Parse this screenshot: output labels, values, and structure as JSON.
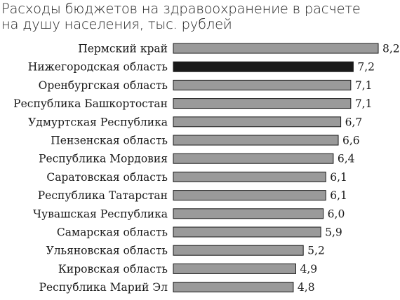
{
  "chart_data": {
    "type": "bar",
    "orientation": "horizontal",
    "title": "Расходы бюджетов на здравоохранение в расчете на душу населения, тыс. рублей",
    "title_lines": [
      "Расходы бюджетов на здравоохранение в расчете",
      "на душу населения, тыс. рублей"
    ],
    "categories": [
      "Пермский край",
      "Нижегородская область",
      "Оренбургская область",
      "Республика Башкортостан",
      "Удмуртская Республика",
      "Пензенская область",
      "Республика Мордовия",
      "Саратовская область",
      "Республика Татарстан",
      "Чувашская Республика",
      "Самарская область",
      "Ульяновская область",
      "Кировская область",
      "Республика Марий Эл"
    ],
    "values": [
      8.2,
      7.2,
      7.1,
      7.1,
      6.7,
      6.6,
      6.4,
      6.1,
      6.1,
      6.0,
      5.9,
      5.2,
      4.9,
      4.8
    ],
    "value_labels": [
      "8,2",
      "7,2",
      "7,1",
      "7,1",
      "6,7",
      "6,6",
      "6,4",
      "6,1",
      "6,1",
      "6,0",
      "5,9",
      "5,2",
      "4,9",
      "4,8"
    ],
    "highlight": "Нижегородская область",
    "colors": {
      "bar": "#9a9a9a",
      "highlight": "#1a1a1a",
      "outline": "#1a1a1a",
      "text": "#1a1a1a"
    },
    "xlim": [
      0,
      8.2
    ],
    "xlabel": "",
    "ylabel": "",
    "grid": false,
    "legend": "none"
  }
}
